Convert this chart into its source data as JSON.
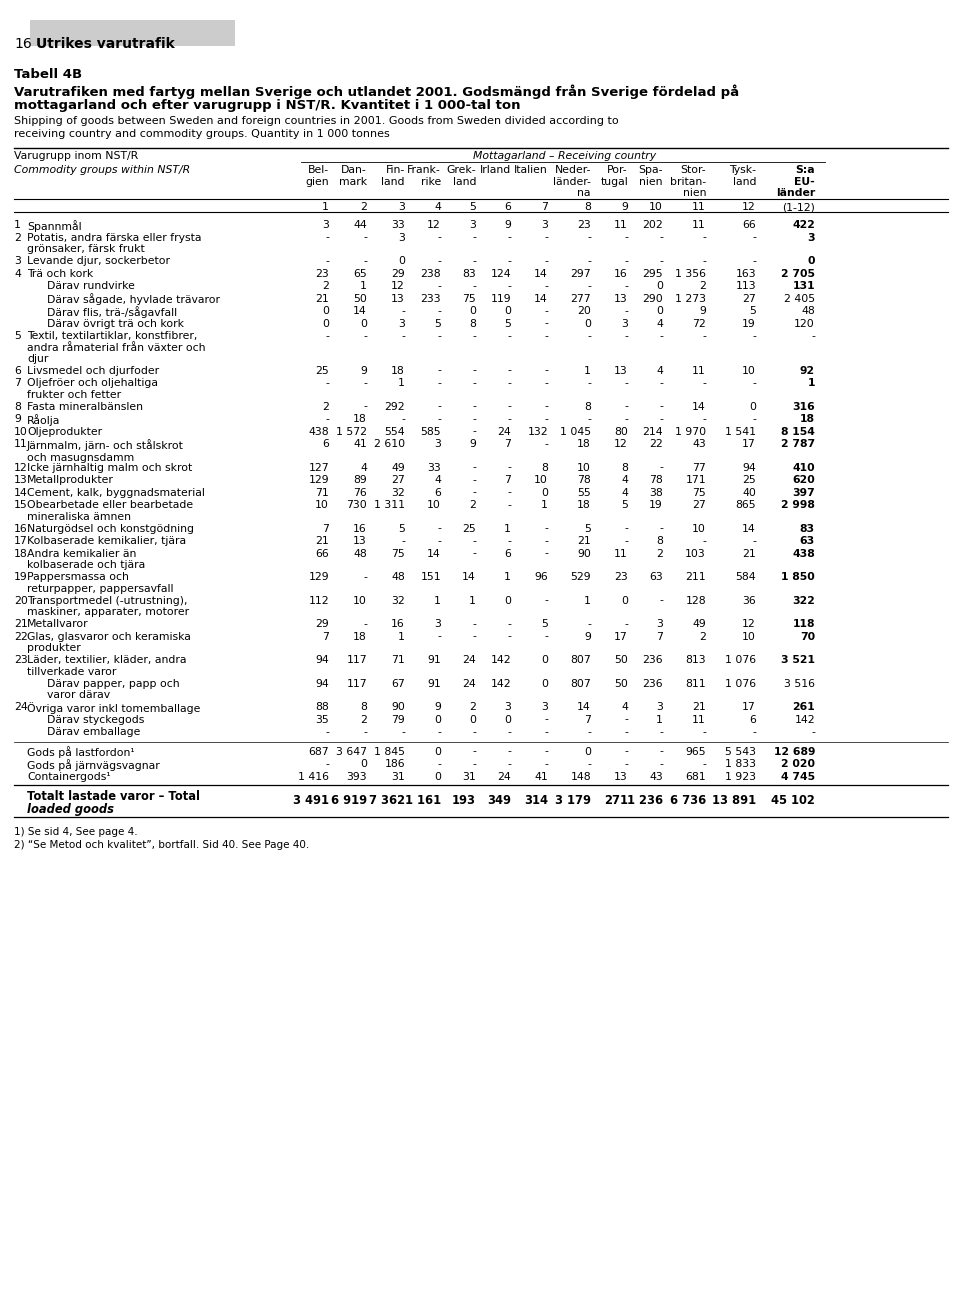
{
  "page_number": "16",
  "page_title": "Utrikes varutrafik",
  "tabell": "Tabell 4B",
  "title_sv1": "Varutrafiken med fartyg mellan Sverige och utlandet 2001. Godsmängd från Sverige fördelad på",
  "title_sv2": "mottagarland och efter varugrupp i NST/R. Kvantitet i 1 000-tal ton",
  "title_en1": "Shipping of goods between Sweden and foreign countries in 2001. Goods from Sweden divided according to",
  "title_en2": "receiving country and commodity groups. Quantity in 1 000 tonnes",
  "col_header_row1_left": "Varugrupp inom NST/R",
  "col_header_row1_right": "Mottagarland – Receiving country",
  "col_header_row2_left": "Commodity groups within NST/R",
  "col_headers": [
    "Bel-\ngien",
    "Dan-\nmark",
    "Fin-\nland",
    "Frank-\nrike",
    "Grek-\nland",
    "Irland",
    "Italien",
    "Neder-\nländer-\nna",
    "Por-\ntugal",
    "Spa-\nnien",
    "Stor-\nbritan-\nnien",
    "Tysk-\nland",
    "S:a\nEU-\nländer"
  ],
  "col_numbers": [
    "1",
    "2",
    "3",
    "4",
    "5",
    "6",
    "7",
    "8",
    "9",
    "10",
    "11",
    "12",
    "(1-12)"
  ],
  "rows": [
    {
      "num": "1",
      "label": "Spannmål",
      "indent": 0,
      "vals": [
        "3",
        "44",
        "33",
        "12",
        "3",
        "9",
        "3",
        "23",
        "11",
        "202",
        "11",
        "66",
        "422"
      ],
      "bold_last": true
    },
    {
      "num": "2",
      "label": "Potatis, andra färska eller frysta\ngrönsaker, färsk frukt",
      "indent": 0,
      "vals": [
        "-",
        "-",
        "3",
        "-",
        "-",
        "-",
        "-",
        "-",
        "-",
        "-",
        "-",
        "-",
        "3"
      ],
      "bold_last": true
    },
    {
      "num": "3",
      "label": "Levande djur, sockerbetor",
      "indent": 0,
      "vals": [
        "-",
        "-",
        "0",
        "-",
        "-",
        "-",
        "-",
        "-",
        "-",
        "-",
        "-",
        "-",
        "0"
      ],
      "bold_last": true
    },
    {
      "num": "4",
      "label": "Trä och kork",
      "indent": 0,
      "vals": [
        "23",
        "65",
        "29",
        "238",
        "83",
        "124",
        "14",
        "297",
        "16",
        "295",
        "1 356",
        "163",
        "2 705"
      ],
      "bold_last": true
    },
    {
      "num": "",
      "label": "Därav rundvirke",
      "indent": 1,
      "vals": [
        "2",
        "1",
        "12",
        "-",
        "-",
        "-",
        "-",
        "-",
        "-",
        "0",
        "2",
        "113",
        "131"
      ],
      "bold_last": true
    },
    {
      "num": "",
      "label": "Därav sågade, hyvlade trävaror",
      "indent": 1,
      "vals": [
        "21",
        "50",
        "13",
        "233",
        "75",
        "119",
        "14",
        "277",
        "13",
        "290",
        "1 273",
        "27",
        "2 405"
      ],
      "bold_last": false
    },
    {
      "num": "",
      "label": "Därav flis, trä-/sågavfall",
      "indent": 1,
      "vals": [
        "0",
        "14",
        "-",
        "-",
        "0",
        "0",
        "-",
        "20",
        "-",
        "0",
        "9",
        "5",
        "48"
      ],
      "bold_last": false
    },
    {
      "num": "",
      "label": "Därav övrigt trä och kork",
      "indent": 1,
      "vals": [
        "0",
        "0",
        "3",
        "5",
        "8",
        "5",
        "-",
        "0",
        "3",
        "4",
        "72",
        "19",
        "120"
      ],
      "bold_last": false
    },
    {
      "num": "5",
      "label": "Textil, textilartiklar, konstfibrer,\nandra råmaterial från växter och\ndjur",
      "indent": 0,
      "vals": [
        "-",
        "-",
        "-",
        "-",
        "-",
        "-",
        "-",
        "-",
        "-",
        "-",
        "-",
        "-",
        "-"
      ],
      "bold_last": false
    },
    {
      "num": "6",
      "label": "Livsmedel och djurfoder",
      "indent": 0,
      "vals": [
        "25",
        "9",
        "18",
        "-",
        "-",
        "-",
        "-",
        "1",
        "13",
        "4",
        "11",
        "10",
        "92"
      ],
      "bold_last": true
    },
    {
      "num": "7",
      "label": "Oljefröer och oljehaltiga\nfrukter och fetter",
      "indent": 0,
      "vals": [
        "-",
        "-",
        "1",
        "-",
        "-",
        "-",
        "-",
        "-",
        "-",
        "-",
        "-",
        "-",
        "1"
      ],
      "bold_last": true
    },
    {
      "num": "8",
      "label": "Fasta mineralbänslen",
      "indent": 0,
      "vals": [
        "2",
        "-",
        "292",
        "-",
        "-",
        "-",
        "-",
        "8",
        "-",
        "-",
        "14",
        "0",
        "316"
      ],
      "bold_last": true
    },
    {
      "num": "9",
      "label": "Råolja",
      "indent": 0,
      "vals": [
        "-",
        "18",
        "-",
        "-",
        "-",
        "-",
        "-",
        "-",
        "-",
        "-",
        "-",
        "-",
        "18"
      ],
      "bold_last": true
    },
    {
      "num": "10",
      "label": "Oljeprodukter",
      "indent": 0,
      "vals": [
        "438",
        "1 572",
        "554",
        "585",
        "-",
        "24",
        "132",
        "1 045",
        "80",
        "214",
        "1 970",
        "1 541",
        "8 154"
      ],
      "bold_last": true
    },
    {
      "num": "11",
      "label": "Järnmalm, järn- och stålskrot\noch masugnsdamm",
      "indent": 0,
      "vals": [
        "6",
        "41",
        "2 610",
        "3",
        "9",
        "7",
        "-",
        "18",
        "12",
        "22",
        "43",
        "17",
        "2 787"
      ],
      "bold_last": true
    },
    {
      "num": "12",
      "label": "Icke järnhaltig malm och skrot",
      "indent": 0,
      "vals": [
        "127",
        "4",
        "49",
        "33",
        "-",
        "-",
        "8",
        "10",
        "8",
        "-",
        "77",
        "94",
        "410"
      ],
      "bold_last": true
    },
    {
      "num": "13",
      "label": "Metallprodukter",
      "indent": 0,
      "vals": [
        "129",
        "89",
        "27",
        "4",
        "-",
        "7",
        "10",
        "78",
        "4",
        "78",
        "171",
        "25",
        "620"
      ],
      "bold_last": true
    },
    {
      "num": "14",
      "label": "Cement, kalk, byggnadsmaterial",
      "indent": 0,
      "vals": [
        "71",
        "76",
        "32",
        "6",
        "-",
        "-",
        "0",
        "55",
        "4",
        "38",
        "75",
        "40",
        "397"
      ],
      "bold_last": true
    },
    {
      "num": "15",
      "label": "Obearbetade eller bearbetade\nmineraliska ämnen",
      "indent": 0,
      "vals": [
        "10",
        "730",
        "1 311",
        "10",
        "2",
        "-",
        "1",
        "18",
        "5",
        "19",
        "27",
        "865",
        "2 998"
      ],
      "bold_last": true
    },
    {
      "num": "16",
      "label": "Naturgödsel och konstgödning",
      "indent": 0,
      "vals": [
        "7",
        "16",
        "5",
        "-",
        "25",
        "1",
        "-",
        "5",
        "-",
        "-",
        "10",
        "14",
        "83"
      ],
      "bold_last": true
    },
    {
      "num": "17",
      "label": "Kolbaserade kemikalier, tjära",
      "indent": 0,
      "vals": [
        "21",
        "13",
        "-",
        "-",
        "-",
        "-",
        "-",
        "21",
        "-",
        "8",
        "-",
        "-",
        "63"
      ],
      "bold_last": true
    },
    {
      "num": "18",
      "label": "Andra kemikalier än\nkolbaserade och tjära",
      "indent": 0,
      "vals": [
        "66",
        "48",
        "75",
        "14",
        "-",
        "6",
        "-",
        "90",
        "11",
        "2",
        "103",
        "21",
        "438"
      ],
      "bold_last": true
    },
    {
      "num": "19",
      "label": "Pappersmassa och\nreturpapper, pappersavfall",
      "indent": 0,
      "vals": [
        "129",
        "-",
        "48",
        "151",
        "14",
        "1",
        "96",
        "529",
        "23",
        "63",
        "211",
        "584",
        "1 850"
      ],
      "bold_last": true
    },
    {
      "num": "20",
      "label": "Transportmedel (-utrustning),\nmaskiner, apparater, motorer",
      "indent": 0,
      "vals": [
        "112",
        "10",
        "32",
        "1",
        "1",
        "0",
        "-",
        "1",
        "0",
        "-",
        "128",
        "36",
        "322"
      ],
      "bold_last": true
    },
    {
      "num": "21",
      "label": "Metallvaror",
      "indent": 0,
      "vals": [
        "29",
        "-",
        "16",
        "3",
        "-",
        "-",
        "5",
        "-",
        "-",
        "3",
        "49",
        "12",
        "118"
      ],
      "bold_last": true
    },
    {
      "num": "22",
      "label": "Glas, glasvaror och keramiska\nprodukter",
      "indent": 0,
      "vals": [
        "7",
        "18",
        "1",
        "-",
        "-",
        "-",
        "-",
        "9",
        "17",
        "7",
        "2",
        "10",
        "70"
      ],
      "bold_last": true
    },
    {
      "num": "23",
      "label": "Läder, textilier, kläder, andra\ntillverkade varor",
      "indent": 0,
      "vals": [
        "94",
        "117",
        "71",
        "91",
        "24",
        "142",
        "0",
        "807",
        "50",
        "236",
        "813",
        "1 076",
        "3 521"
      ],
      "bold_last": true
    },
    {
      "num": "",
      "label": "Därav papper, papp och\nvaror därav",
      "indent": 1,
      "vals": [
        "94",
        "117",
        "67",
        "91",
        "24",
        "142",
        "0",
        "807",
        "50",
        "236",
        "811",
        "1 076",
        "3 516"
      ],
      "bold_last": false
    },
    {
      "num": "24",
      "label": "Övriga varor inkl tomemballage",
      "indent": 0,
      "vals": [
        "88",
        "8",
        "90",
        "9",
        "2",
        "3",
        "3",
        "14",
        "4",
        "3",
        "21",
        "17",
        "261"
      ],
      "bold_last": true
    },
    {
      "num": "",
      "label": "Därav styckegods",
      "indent": 1,
      "vals": [
        "35",
        "2",
        "79",
        "0",
        "0",
        "0",
        "-",
        "7",
        "-",
        "1",
        "11",
        "6",
        "142"
      ],
      "bold_last": false
    },
    {
      "num": "",
      "label": "Därav emballage",
      "indent": 1,
      "vals": [
        "-",
        "-",
        "-",
        "-",
        "-",
        "-",
        "-",
        "-",
        "-",
        "-",
        "-",
        "-",
        "-"
      ],
      "bold_last": false
    }
  ],
  "separator_rows": [
    {
      "label": "Gods på lastfordon¹",
      "vals": [
        "687",
        "3 647",
        "1 845",
        "0",
        "-",
        "-",
        "-",
        "0",
        "-",
        "-",
        "965",
        "5 543",
        "12 689"
      ]
    },
    {
      "label": "Gods på järnvägsvagnar",
      "vals": [
        "-",
        "0",
        "186",
        "-",
        "-",
        "-",
        "-",
        "-",
        "-",
        "-",
        "-",
        "1 833",
        "2 020"
      ]
    },
    {
      "label": "Containergods¹",
      "vals": [
        "1 416",
        "393",
        "31",
        "0",
        "31",
        "24",
        "41",
        "148",
        "13",
        "43",
        "681",
        "1 923",
        "4 745"
      ]
    }
  ],
  "total_label1": "Totalt lastade varor – Total",
  "total_label2": "loaded goods",
  "total_vals": [
    "3 491",
    "6 919",
    "7 362",
    "1 161",
    "193",
    "349",
    "314",
    "3 179",
    "271",
    "1 236",
    "6 736",
    "13 891",
    "45 102"
  ],
  "footnote1": "1) Se sid 4, See page 4.",
  "footnote2": "2) “Se Metod och kvalitet”, bortfall. Sid 40. See Page 40."
}
